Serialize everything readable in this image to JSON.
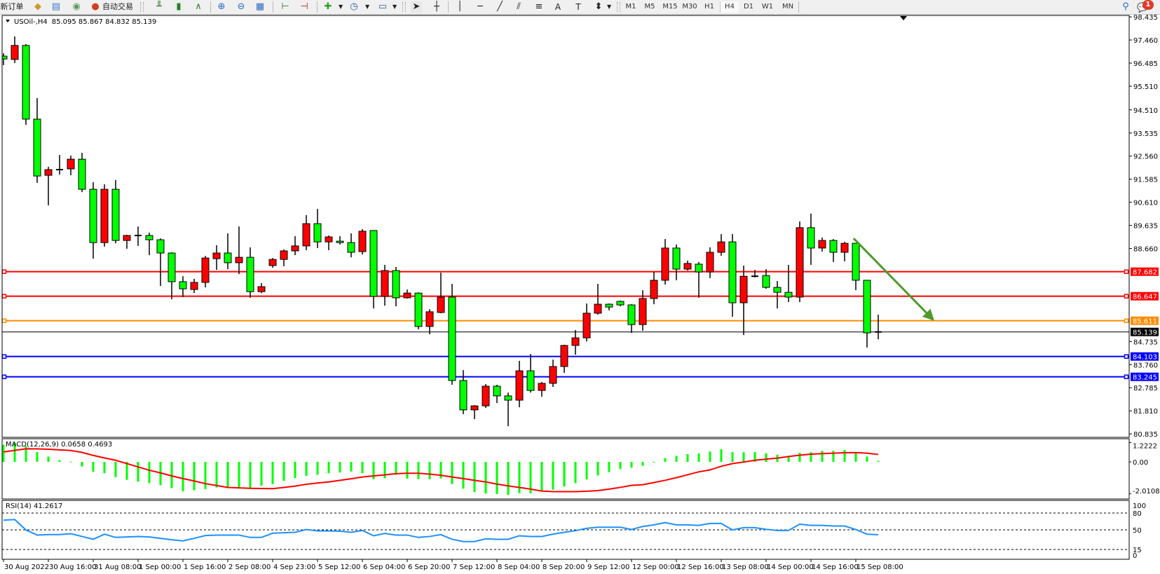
{
  "toolbar": {
    "new_order_label": "新订单",
    "auto_trading_label": "自动交易",
    "timeframes": [
      "M1",
      "M5",
      "M15",
      "M30",
      "H1",
      "H4",
      "D1",
      "W1",
      "MN"
    ],
    "active_timeframe": "H4",
    "notification_count": "1",
    "icons": [
      "new-order-icon",
      "metaeditor-icon",
      "terminal-icon",
      "signals-icon",
      "autotrading-icon",
      "bar-chart-icon",
      "candlestick-icon",
      "line-chart-icon",
      "zoom-in-icon",
      "zoom-out-icon",
      "tile-windows-icon",
      "chart-shift-icon",
      "autoscroll-icon",
      "add-indicator-icon",
      "periods-icon",
      "templates-icon",
      "cursor-icon",
      "crosshair-icon",
      "vertical-line-icon",
      "horizontal-line-icon",
      "trendline-icon",
      "equidistant-channel-icon",
      "fibonacci-icon",
      "text-icon",
      "text-label-icon",
      "arrows-icon",
      "search-icon",
      "notification-icon"
    ]
  },
  "chart": {
    "header": "USOil-,H4",
    "ohlc": "85.095 85.867 84.832 85.139",
    "macd_label": "MACD(12,26,9) 0.0658 0.4693",
    "rsi_label": "RSI(14) 41.2617"
  },
  "colors": {
    "bull": "#ff0000",
    "bear": "#00ff00",
    "macd_hist": "#00ff00",
    "macd_signal": "#ff0000",
    "rsi": "#1e90ff",
    "arrow": "#4e9a2c"
  },
  "chart_data": [
    {
      "type": "candlestick",
      "symbol": "USOil-",
      "timeframe": "H4",
      "ylim": [
        80.835,
        98.435
      ],
      "price_ticks": [
        "98.435",
        "97.460",
        "96.485",
        "95.510",
        "94.510",
        "93.535",
        "92.560",
        "91.585",
        "90.610",
        "89.635",
        "88.660",
        "84.735",
        "83.760",
        "82.785",
        "81.810",
        "80.835"
      ],
      "time_labels": [
        {
          "bar": 0,
          "label": "30 Aug 2022"
        },
        {
          "bar": 4,
          "label": "30 Aug 16:00"
        },
        {
          "bar": 8,
          "label": "31 Aug 08:00"
        },
        {
          "bar": 12,
          "label": "1 Sep 00:00"
        },
        {
          "bar": 16,
          "label": "1 Sep 16:00"
        },
        {
          "bar": 20,
          "label": "2 Sep 08:00"
        },
        {
          "bar": 24,
          "label": "4 Sep 23:00"
        },
        {
          "bar": 28,
          "label": "5 Sep 12:00"
        },
        {
          "bar": 32,
          "label": "6 Sep 04:00"
        },
        {
          "bar": 36,
          "label": "6 Sep 20:00"
        },
        {
          "bar": 40,
          "label": "7 Sep 12:00"
        },
        {
          "bar": 44,
          "label": "8 Sep 04:00"
        },
        {
          "bar": 48,
          "label": "8 Sep 20:00"
        },
        {
          "bar": 52,
          "label": "9 Sep 12:00"
        },
        {
          "bar": 56,
          "label": "12 Sep 00:00"
        },
        {
          "bar": 60,
          "label": "12 Sep 16:00"
        },
        {
          "bar": 64,
          "label": "13 Sep 08:00"
        },
        {
          "bar": 68,
          "label": "14 Sep 00:00"
        },
        {
          "bar": 72,
          "label": "14 Sep 16:00"
        },
        {
          "bar": 76,
          "label": "15 Sep 08:00"
        }
      ],
      "ohlc": [
        [
          96.78,
          96.9,
          96.4,
          96.66
        ],
        [
          96.64,
          97.61,
          96.49,
          97.23
        ],
        [
          97.23,
          97.29,
          93.88,
          94.12
        ],
        [
          94.12,
          95.01,
          91.43,
          91.72
        ],
        [
          91.75,
          92.11,
          90.48,
          91.99
        ],
        [
          91.99,
          92.61,
          91.78,
          91.99
        ],
        [
          92.02,
          92.58,
          91.75,
          92.43
        ],
        [
          92.43,
          92.7,
          91.04,
          91.16
        ],
        [
          91.16,
          91.46,
          88.23,
          88.91
        ],
        [
          88.91,
          91.37,
          88.74,
          91.16
        ],
        [
          91.16,
          91.55,
          88.88,
          89.0
        ],
        [
          89.0,
          89.24,
          88.65,
          89.21
        ],
        [
          89.21,
          89.59,
          88.77,
          89.21
        ],
        [
          89.21,
          89.33,
          88.38,
          89.03
        ],
        [
          89.03,
          89.09,
          87.08,
          88.47
        ],
        [
          88.47,
          88.5,
          86.52,
          87.26
        ],
        [
          87.26,
          87.49,
          86.61,
          86.96
        ],
        [
          86.93,
          87.38,
          86.78,
          87.23
        ],
        [
          87.23,
          88.35,
          87.02,
          88.26
        ],
        [
          88.23,
          88.8,
          87.76,
          88.47
        ],
        [
          88.47,
          89.3,
          87.79,
          88.06
        ],
        [
          88.06,
          89.59,
          87.58,
          88.29
        ],
        [
          88.29,
          88.71,
          86.58,
          86.84
        ],
        [
          86.84,
          87.2,
          86.78,
          87.05
        ],
        [
          87.94,
          88.26,
          87.85,
          88.2
        ],
        [
          88.2,
          88.62,
          87.91,
          88.56
        ],
        [
          88.56,
          89.18,
          88.38,
          88.77
        ],
        [
          88.77,
          90.07,
          88.59,
          89.71
        ],
        [
          89.71,
          90.33,
          88.68,
          88.94
        ],
        [
          88.94,
          89.21,
          88.59,
          89.15
        ],
        [
          88.97,
          89.18,
          88.83,
          88.91
        ],
        [
          88.91,
          89.3,
          88.29,
          88.5
        ],
        [
          88.53,
          89.48,
          88.41,
          89.39
        ],
        [
          89.42,
          89.42,
          86.13,
          86.64
        ],
        [
          86.64,
          87.97,
          86.25,
          87.73
        ],
        [
          87.73,
          87.88,
          86.22,
          86.58
        ],
        [
          86.58,
          86.93,
          86.55,
          86.78
        ],
        [
          86.78,
          86.81,
          85.25,
          85.37
        ],
        [
          85.37,
          86.1,
          85.04,
          85.99
        ],
        [
          85.96,
          87.64,
          85.93,
          86.61
        ],
        [
          86.61,
          87.17,
          82.91,
          83.09
        ],
        [
          83.09,
          83.53,
          81.67,
          81.85
        ],
        [
          81.85,
          82.05,
          81.46,
          82.02
        ],
        [
          82.02,
          82.94,
          81.93,
          82.85
        ],
        [
          82.85,
          82.91,
          82.14,
          82.44
        ],
        [
          82.44,
          82.58,
          81.16,
          82.26
        ],
        [
          82.26,
          83.92,
          81.96,
          83.5
        ],
        [
          83.5,
          84.21,
          82.58,
          82.67
        ],
        [
          82.67,
          83.03,
          82.41,
          82.97
        ],
        [
          82.97,
          83.97,
          82.82,
          83.68
        ],
        [
          83.68,
          84.6,
          83.41,
          84.57
        ],
        [
          84.57,
          85.22,
          84.18,
          84.89
        ],
        [
          84.89,
          86.34,
          84.74,
          85.93
        ],
        [
          85.93,
          87.17,
          85.87,
          86.31
        ],
        [
          86.31,
          86.34,
          86.05,
          86.19
        ],
        [
          86.43,
          86.46,
          86.22,
          86.28
        ],
        [
          86.28,
          86.31,
          85.1,
          85.45
        ],
        [
          85.45,
          86.9,
          85.19,
          86.55
        ],
        [
          86.55,
          87.67,
          86.31,
          87.32
        ],
        [
          87.32,
          89.06,
          87.14,
          88.68
        ],
        [
          88.68,
          88.83,
          87.32,
          87.79
        ],
        [
          87.79,
          88.15,
          87.73,
          88.03
        ],
        [
          88.0,
          88.09,
          86.58,
          87.67
        ],
        [
          87.67,
          88.71,
          87.41,
          88.5
        ],
        [
          88.5,
          89.27,
          88.35,
          88.94
        ],
        [
          88.94,
          89.27,
          85.78,
          86.37
        ],
        [
          86.37,
          87.94,
          85.01,
          87.49
        ],
        [
          87.49,
          87.76,
          87.44,
          87.49
        ],
        [
          87.52,
          87.79,
          86.96,
          87.02
        ],
        [
          87.02,
          87.29,
          86.13,
          86.81
        ],
        [
          86.81,
          87.97,
          86.4,
          86.61
        ],
        [
          86.61,
          89.8,
          86.4,
          89.54
        ],
        [
          89.54,
          90.13,
          87.97,
          88.68
        ],
        [
          88.68,
          89.12,
          88.53,
          89.0
        ],
        [
          89.0,
          89.06,
          88.09,
          88.5
        ],
        [
          88.5,
          88.94,
          88.12,
          88.88
        ],
        [
          88.88,
          88.88,
          86.9,
          87.32
        ],
        [
          87.32,
          87.32,
          84.48,
          85.1
        ],
        [
          85.095,
          85.867,
          84.832,
          85.139
        ]
      ],
      "horizontal_lines": [
        {
          "price": "87.682",
          "color": "#ff0000"
        },
        {
          "price": "86.647",
          "color": "#ff0000"
        },
        {
          "price": "85.611",
          "color": "#ff8c00"
        },
        {
          "price": "84.103",
          "color": "#0000ff"
        },
        {
          "price": "83.245",
          "color": "#0000ff"
        }
      ],
      "bid_line": {
        "price": "85.139",
        "color": "#000000"
      },
      "trend_arrow": {
        "from": {
          "bar": 75.8,
          "price": 89.09
        },
        "to": {
          "bar": 83,
          "price": 85.61
        }
      }
    },
    {
      "type": "bar",
      "indicator": "MACD(12,26,9)",
      "ylim": [
        -2.0108,
        1.2222
      ],
      "ticks": [
        "1.2222",
        "0.00",
        "-2.0108"
      ],
      "histogram": [
        1.08,
        1.22,
        1.0,
        0.62,
        0.34,
        0.11,
        0.02,
        -0.3,
        -0.63,
        -0.72,
        -0.97,
        -1.14,
        -1.25,
        -1.35,
        -1.48,
        -1.66,
        -1.87,
        -1.8,
        -1.73,
        -1.62,
        -1.59,
        -1.62,
        -1.66,
        -1.52,
        -1.41,
        -1.21,
        -1.03,
        -0.89,
        -0.82,
        -0.72,
        -0.68,
        -0.61,
        -0.72,
        -1.1,
        -1.03,
        -0.82,
        -1.06,
        -1.1,
        -1.1,
        -1.05,
        -1.41,
        -1.7,
        -1.92,
        -2.01,
        -2.04,
        -2.1,
        -1.99,
        -1.99,
        -1.87,
        -1.77,
        -1.56,
        -1.35,
        -1.11,
        -0.86,
        -0.65,
        -0.46,
        -0.37,
        -0.25,
        -0.03,
        0.24,
        0.38,
        0.49,
        0.54,
        0.66,
        0.8,
        0.62,
        0.61,
        0.62,
        0.55,
        0.45,
        0.38,
        0.58,
        0.61,
        0.7,
        0.7,
        0.76,
        0.58,
        0.34,
        0.0658
      ],
      "signal": [
        0.63,
        0.73,
        0.83,
        0.82,
        0.8,
        0.76,
        0.72,
        0.6,
        0.41,
        0.25,
        0.1,
        -0.11,
        -0.32,
        -0.53,
        -0.7,
        -0.89,
        -1.06,
        -1.21,
        -1.38,
        -1.5,
        -1.62,
        -1.65,
        -1.68,
        -1.69,
        -1.7,
        -1.62,
        -1.54,
        -1.42,
        -1.34,
        -1.27,
        -1.17,
        -1.07,
        -0.96,
        -0.89,
        -0.82,
        -0.75,
        -0.72,
        -0.72,
        -0.78,
        -0.85,
        -0.96,
        -1.06,
        -1.17,
        -1.27,
        -1.41,
        -1.52,
        -1.62,
        -1.73,
        -1.85,
        -1.89,
        -1.89,
        -1.89,
        -1.86,
        -1.82,
        -1.73,
        -1.62,
        -1.49,
        -1.45,
        -1.31,
        -1.17,
        -1.0,
        -0.82,
        -0.63,
        -0.51,
        -0.28,
        -0.11,
        -0.01,
        0.1,
        0.17,
        0.24,
        0.34,
        0.42,
        0.49,
        0.52,
        0.55,
        0.58,
        0.59,
        0.55,
        0.4693
      ]
    },
    {
      "type": "line",
      "indicator": "RSI(14)",
      "ylim": [
        0,
        100
      ],
      "ticks": [
        "100",
        "80",
        "50",
        "15",
        "0"
      ],
      "levels": [
        80,
        50,
        15
      ],
      "values": [
        67.2,
        68.4,
        49.8,
        40.7,
        41.5,
        41.5,
        43.1,
        38.2,
        33.2,
        42.3,
        36.5,
        37.4,
        38.2,
        37.4,
        34.9,
        32.4,
        30.3,
        34.9,
        39.8,
        40.7,
        40.7,
        40.7,
        36.5,
        36.5,
        44.0,
        44.8,
        45.6,
        50.6,
        48.1,
        48.1,
        47.7,
        45.6,
        48.9,
        39.4,
        43.6,
        40.7,
        40.7,
        36.5,
        38.2,
        41.5,
        33.2,
        29.1,
        29.1,
        34.0,
        33.2,
        33.2,
        39.4,
        38.2,
        38.2,
        42.3,
        45.6,
        48.5,
        52.7,
        54.7,
        54.7,
        54.7,
        50.6,
        56.0,
        58.9,
        63.0,
        58.9,
        58.9,
        58.0,
        61.4,
        61.4,
        49.8,
        53.9,
        53.9,
        51.0,
        48.9,
        48.9,
        60.1,
        58.0,
        58.0,
        56.8,
        56.8,
        50.6,
        42.3,
        41.2617
      ]
    }
  ]
}
